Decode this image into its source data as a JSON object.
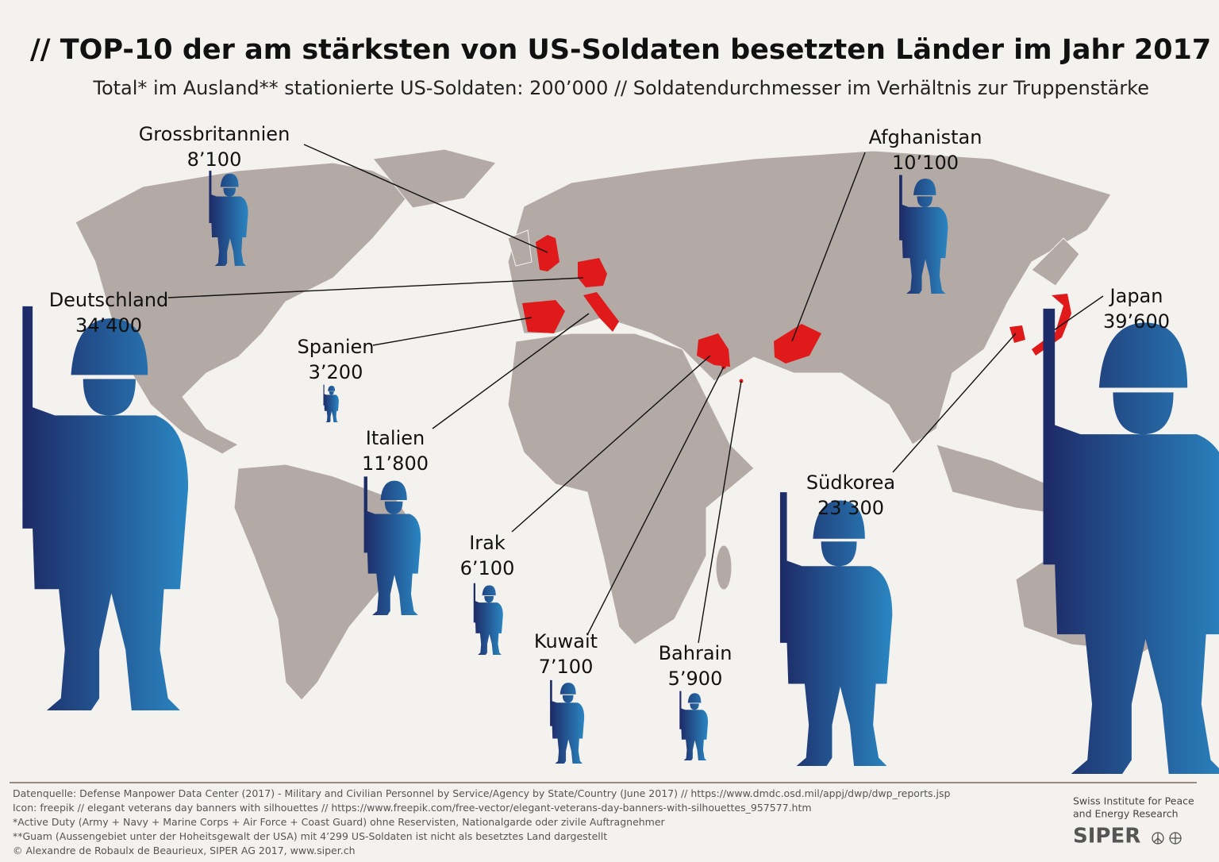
{
  "title": "// TOP-10 der am stärksten von US-Soldaten besetzten Länder im Jahr 2017",
  "subtitle": "Total* im Ausland** stationierte US-Soldaten: 200’000 // Soldatendurchmesser im Verhältnis zur Truppenstärke",
  "countries": [
    {
      "name": "Grossbritannien",
      "value": 8100,
      "label": "8’100"
    },
    {
      "name": "Deutschland",
      "value": 34400,
      "label": "34’400"
    },
    {
      "name": "Spanien",
      "value": 3200,
      "label": "3’200"
    },
    {
      "name": "Italien",
      "value": 11800,
      "label": "11’800"
    },
    {
      "name": "Irak",
      "value": 6100,
      "label": "6’100"
    },
    {
      "name": "Kuwait",
      "value": 7100,
      "label": "7’100"
    },
    {
      "name": "Bahrain",
      "value": 5900,
      "label": "5’900"
    },
    {
      "name": "Südkorea",
      "value": 23300,
      "label": "23’300"
    },
    {
      "name": "Afghanistan",
      "value": 10100,
      "label": "10’100"
    },
    {
      "name": "Japan",
      "value": 39600,
      "label": "39’600"
    }
  ],
  "footer": [
    "Datenquelle: Defense Manpower Data Center (2017) - Military and Civilian Personnel by Service/Agency by State/Country (June 2017) // https://www.dmdc.osd.mil/appj/dwp/dwp_reports.jsp",
    "Icon: freepik // elegant veterans day banners with silhouettes // https://www.freepik.com/free-vector/elegant-veterans-day-banners-with-silhouettes_957577.htm",
    "*Active Duty (Army + Navy + Marine Corps + Air Force + Coast Guard) ohne Reservisten, Nationalgarde oder zivile Auftragnehmer",
    "**Guam (Aussengebiet unter der Hoheitsgewalt der USA) mit 4’299 US-Soldaten ist nicht als besetztes Land dargestellt",
    "© Alexandre de Robaulx de Beaurieux, SIPER AG 2017, www.siper.ch"
  ],
  "logo": {
    "line1": "Swiss Institute for Peace",
    "line2": "and Energy Research",
    "name": "SIPER"
  }
}
